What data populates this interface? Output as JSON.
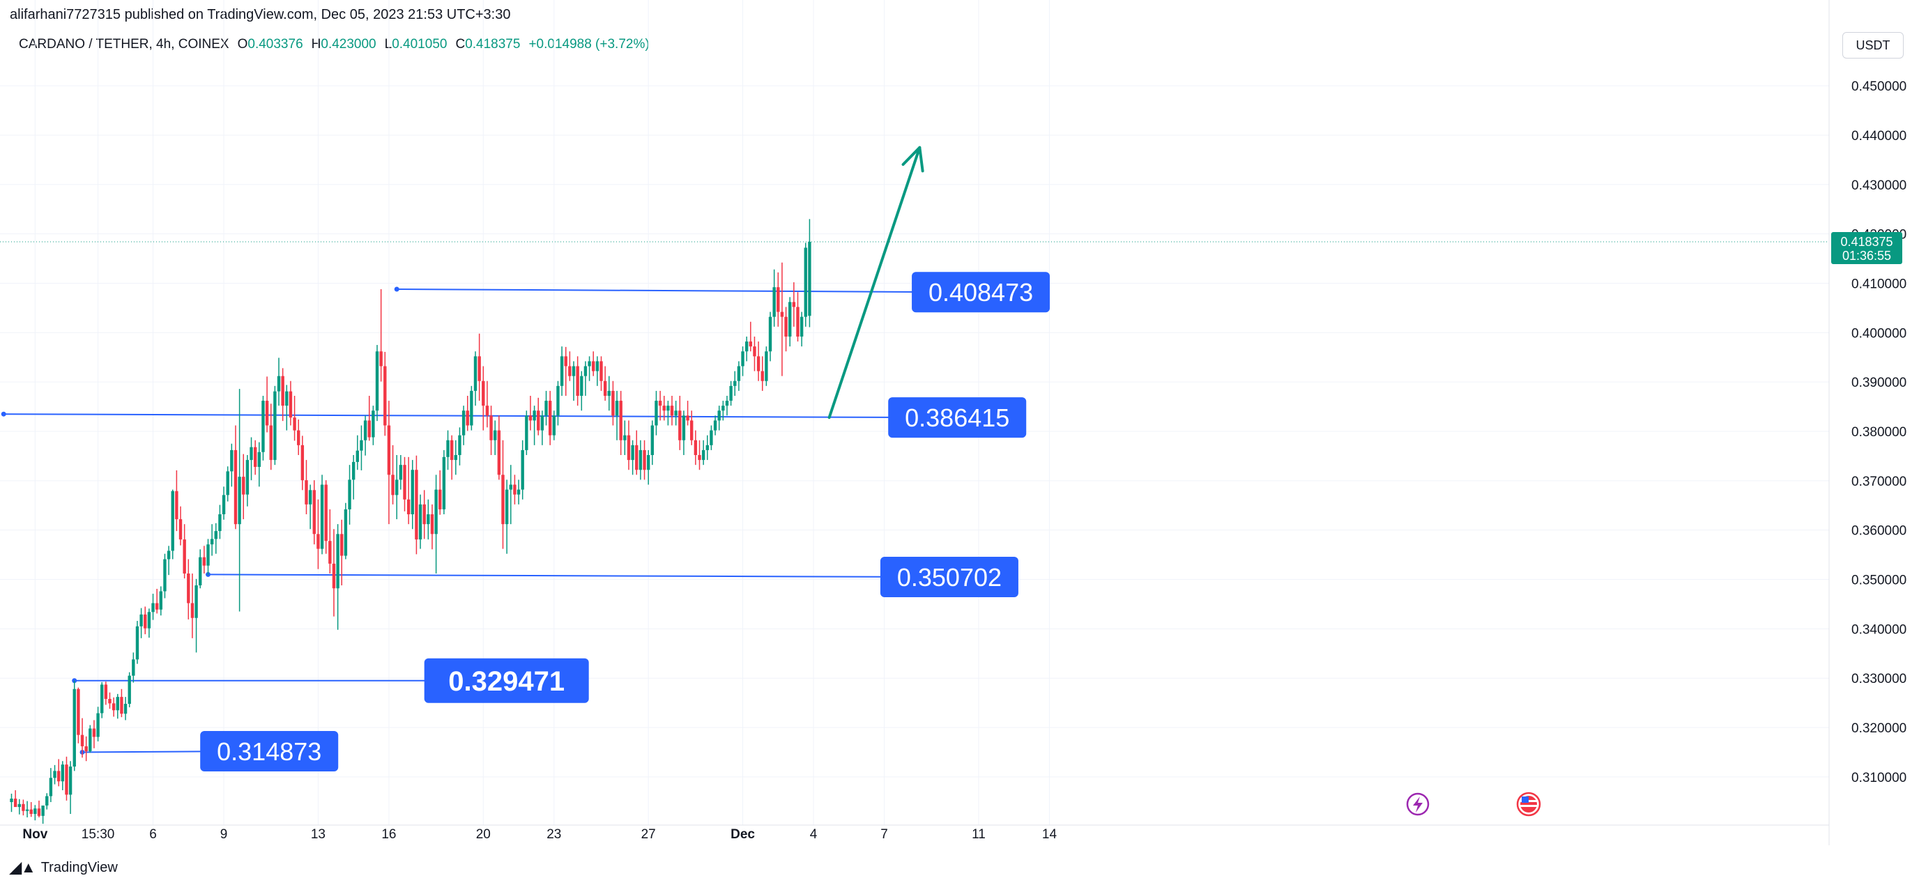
{
  "header": {
    "publisher": "alifarhani7727315 published on TradingView.com, Dec 05, 2023 21:53 UTC+3:30"
  },
  "legend": {
    "symbol": "CARDANO / TETHER, 4h, COINEX",
    "open_label": "O",
    "open": "0.403376",
    "high_label": "H",
    "high": "0.423000",
    "low_label": "L",
    "low": "0.401050",
    "close_label": "C",
    "close": "0.418375",
    "change": "+0.014988 (+3.72%)"
  },
  "currency_button": "USDT",
  "footer": {
    "brand": "TradingView"
  },
  "icons": {
    "logo": "tradingview-logo-icon",
    "event1": "lightning-event-icon",
    "event2": "us-flag-event-icon"
  },
  "colors": {
    "up": "#089981",
    "down": "#f23645",
    "level": "#2962ff",
    "arrow": "#089981"
  },
  "chart_data": {
    "type": "candlestick",
    "title": "CARDANO / TETHER, 4h, COINEX",
    "ylim": [
      0.3025,
      0.4575
    ],
    "y_ticks": [
      "0.450000",
      "0.440000",
      "0.430000",
      "0.420000",
      "0.410000",
      "0.400000",
      "0.390000",
      "0.380000",
      "0.370000",
      "0.360000",
      "0.350000",
      "0.340000",
      "0.330000",
      "0.320000",
      "0.310000"
    ],
    "x_ticks": [
      {
        "label": "Nov",
        "bar": 6,
        "bold": true
      },
      {
        "label": "15:30",
        "bar": 22,
        "bold": false
      },
      {
        "label": "6",
        "bar": 36,
        "bold": false
      },
      {
        "label": "9",
        "bar": 54,
        "bold": false
      },
      {
        "label": "13",
        "bar": 78,
        "bold": false
      },
      {
        "label": "16",
        "bar": 96,
        "bold": false
      },
      {
        "label": "20",
        "bar": 120,
        "bold": false
      },
      {
        "label": "23",
        "bar": 138,
        "bold": false
      },
      {
        "label": "27",
        "bar": 162,
        "bold": false
      },
      {
        "label": "Dec",
        "bar": 186,
        "bold": true
      },
      {
        "label": "4",
        "bar": 204,
        "bold": false
      },
      {
        "label": "7",
        "bar": 222,
        "bold": false
      },
      {
        "label": "11",
        "bar": 246,
        "bold": false
      },
      {
        "label": "14",
        "bar": 264,
        "bold": false
      }
    ],
    "price_label": {
      "value": "0.418375",
      "countdown": "01:36:55"
    },
    "levels": [
      {
        "value": 0.408473,
        "label": "0.408473",
        "start_bar": 98,
        "end_bar": 229,
        "start_price": 0.4088,
        "end_price": 0.4082
      },
      {
        "value": 0.386415,
        "label": "0.386415",
        "start_bar": -2,
        "end_bar": 223,
        "start_price": 0.3835,
        "end_price": 0.3828
      },
      {
        "value": 0.350702,
        "label": "0.350702",
        "start_bar": 50,
        "end_bar": 221,
        "start_price": 0.351,
        "end_price": 0.3505
      },
      {
        "value": 0.329471,
        "label": "0.329471",
        "start_bar": 16,
        "end_bar": 105,
        "start_price": 0.3295,
        "end_price": 0.3295
      },
      {
        "value": 0.314873,
        "label": "0.314873",
        "start_bar": 18,
        "end_bar": 48,
        "start_price": 0.315,
        "end_price": 0.3152
      }
    ],
    "arrow": {
      "from_bar": 208,
      "from_price": 0.3828,
      "to_bar": 231,
      "to_price": 0.4375
    },
    "candles": [
      [
        0.3049,
        0.3066,
        0.3029,
        0.3056
      ],
      [
        0.3056,
        0.3073,
        0.3041,
        0.3039
      ],
      [
        0.3039,
        0.3055,
        0.3024,
        0.3045
      ],
      [
        0.3045,
        0.3054,
        0.3022,
        0.3031
      ],
      [
        0.3031,
        0.3051,
        0.3018,
        0.3034
      ],
      [
        0.3034,
        0.3049,
        0.3019,
        0.3025
      ],
      [
        0.3025,
        0.3043,
        0.3012,
        0.3036
      ],
      [
        0.3036,
        0.3052,
        0.3018,
        0.3021
      ],
      [
        0.3021,
        0.3036,
        0.3005,
        0.3042
      ],
      [
        0.3042,
        0.3067,
        0.3034,
        0.3061
      ],
      [
        0.3061,
        0.3118,
        0.3049,
        0.3098
      ],
      [
        0.3098,
        0.3124,
        0.3085,
        0.3112
      ],
      [
        0.3112,
        0.3136,
        0.3081,
        0.3091
      ],
      [
        0.3091,
        0.3132,
        0.3073,
        0.3125
      ],
      [
        0.3125,
        0.3141,
        0.3052,
        0.3064
      ],
      [
        0.3064,
        0.3132,
        0.3025,
        0.3121
      ],
      [
        0.3121,
        0.3295,
        0.3112,
        0.3278
      ],
      [
        0.3278,
        0.3281,
        0.3168,
        0.3185
      ],
      [
        0.3185,
        0.3219,
        0.3139,
        0.3162
      ],
      [
        0.3162,
        0.3182,
        0.3132,
        0.3152
      ],
      [
        0.3152,
        0.3205,
        0.3149,
        0.3198
      ],
      [
        0.3198,
        0.3215,
        0.3158,
        0.3181
      ],
      [
        0.3181,
        0.3242,
        0.3172,
        0.3229
      ],
      [
        0.3229,
        0.3292,
        0.3219,
        0.3287
      ],
      [
        0.3287,
        0.3293,
        0.3246,
        0.3258
      ],
      [
        0.3258,
        0.3271,
        0.3238,
        0.3249
      ],
      [
        0.3249,
        0.3261,
        0.3222,
        0.3235
      ],
      [
        0.3235,
        0.3268,
        0.3218,
        0.3262
      ],
      [
        0.3262,
        0.3278,
        0.3221,
        0.3228
      ],
      [
        0.3228,
        0.3262,
        0.3215,
        0.3248
      ],
      [
        0.3248,
        0.3312,
        0.3241,
        0.3305
      ],
      [
        0.3305,
        0.3352,
        0.3291,
        0.3338
      ],
      [
        0.3338,
        0.3416,
        0.3329,
        0.3405
      ],
      [
        0.3405,
        0.3442,
        0.3381,
        0.3429
      ],
      [
        0.3429,
        0.3445,
        0.3389,
        0.3401
      ],
      [
        0.3401,
        0.3441,
        0.3382,
        0.3434
      ],
      [
        0.3434,
        0.3471,
        0.3418,
        0.3452
      ],
      [
        0.3452,
        0.3481,
        0.3431,
        0.3439
      ],
      [
        0.3439,
        0.3486,
        0.3427,
        0.3476
      ],
      [
        0.3476,
        0.3552,
        0.3462,
        0.3541
      ],
      [
        0.3541,
        0.3568,
        0.3509,
        0.3558
      ],
      [
        0.3558,
        0.3682,
        0.3541,
        0.3679
      ],
      [
        0.3679,
        0.3721,
        0.3598,
        0.3622
      ],
      [
        0.3622,
        0.3648,
        0.3569,
        0.3581
      ],
      [
        0.3581,
        0.3612,
        0.3502,
        0.3512
      ],
      [
        0.3512,
        0.3541,
        0.3419,
        0.3452
      ],
      [
        0.3452,
        0.3512,
        0.3381,
        0.3422
      ],
      [
        0.3422,
        0.3501,
        0.3352,
        0.3488
      ],
      [
        0.3488,
        0.3561,
        0.3482,
        0.3545
      ],
      [
        0.3545,
        0.3568,
        0.3512,
        0.3528
      ],
      [
        0.3528,
        0.3582,
        0.3509,
        0.3571
      ],
      [
        0.3571,
        0.3612,
        0.3548,
        0.3582
      ],
      [
        0.3582,
        0.3614,
        0.3552,
        0.3598
      ],
      [
        0.3598,
        0.3651,
        0.3582,
        0.3632
      ],
      [
        0.3632,
        0.3688,
        0.3621,
        0.3671
      ],
      [
        0.3671,
        0.3729,
        0.3658,
        0.3719
      ],
      [
        0.3719,
        0.3775,
        0.3688,
        0.3762
      ],
      [
        0.3762,
        0.3812,
        0.3602,
        0.3612
      ],
      [
        0.3612,
        0.3886,
        0.3435,
        0.3708
      ],
      [
        0.3708,
        0.3754,
        0.3622,
        0.3672
      ],
      [
        0.3672,
        0.3752,
        0.3648,
        0.3742
      ],
      [
        0.3742,
        0.3788,
        0.3701,
        0.3768
      ],
      [
        0.3768,
        0.3782,
        0.3712,
        0.3728
      ],
      [
        0.3728,
        0.3778,
        0.3688,
        0.3758
      ],
      [
        0.3758,
        0.3872,
        0.3741,
        0.3862
      ],
      [
        0.3862,
        0.3911,
        0.3798,
        0.3812
      ],
      [
        0.3812,
        0.3856,
        0.3722,
        0.3742
      ],
      [
        0.3742,
        0.3892,
        0.3732,
        0.3881
      ],
      [
        0.3881,
        0.3949,
        0.3852,
        0.3912
      ],
      [
        0.3912,
        0.3928,
        0.3821,
        0.3852
      ],
      [
        0.3852,
        0.3894,
        0.3802,
        0.3881
      ],
      [
        0.3881,
        0.3902,
        0.3812,
        0.3828
      ],
      [
        0.3828,
        0.3872,
        0.3781,
        0.3802
      ],
      [
        0.3802,
        0.3824,
        0.3752,
        0.3772
      ],
      [
        0.3772,
        0.3791,
        0.3681,
        0.3701
      ],
      [
        0.3701,
        0.3742,
        0.3632,
        0.3652
      ],
      [
        0.3652,
        0.3692,
        0.3602,
        0.3681
      ],
      [
        0.3681,
        0.3701,
        0.3571,
        0.3592
      ],
      [
        0.3592,
        0.3662,
        0.3521,
        0.3562
      ],
      [
        0.3562,
        0.3712,
        0.3551,
        0.3692
      ],
      [
        0.3692,
        0.3701,
        0.3552,
        0.3578
      ],
      [
        0.3578,
        0.3642,
        0.3512,
        0.3532
      ],
      [
        0.3532,
        0.3602,
        0.3425,
        0.3482
      ],
      [
        0.3482,
        0.3612,
        0.3398,
        0.3592
      ],
      [
        0.3592,
        0.3621,
        0.3488,
        0.3548
      ],
      [
        0.3548,
        0.3655,
        0.3541,
        0.3642
      ],
      [
        0.3642,
        0.3732,
        0.3611,
        0.3702
      ],
      [
        0.3702,
        0.3752,
        0.3662,
        0.3738
      ],
      [
        0.3738,
        0.3792,
        0.3722,
        0.3761
      ],
      [
        0.3761,
        0.3812,
        0.3721,
        0.3782
      ],
      [
        0.3782,
        0.3832,
        0.3751,
        0.3822
      ],
      [
        0.3822,
        0.3872,
        0.3781,
        0.3788
      ],
      [
        0.3788,
        0.3852,
        0.3772,
        0.3842
      ],
      [
        0.3842,
        0.3975,
        0.3821,
        0.3962
      ],
      [
        0.3962,
        0.4088,
        0.3901,
        0.3932
      ],
      [
        0.3932,
        0.3961,
        0.3791,
        0.3812
      ],
      [
        0.3812,
        0.3862,
        0.3612,
        0.3712
      ],
      [
        0.3712,
        0.3772,
        0.3652,
        0.3671
      ],
      [
        0.3671,
        0.3752,
        0.3622,
        0.3702
      ],
      [
        0.3702,
        0.3752,
        0.3682,
        0.3732
      ],
      [
        0.3732,
        0.3748,
        0.3638,
        0.3662
      ],
      [
        0.3662,
        0.3748,
        0.3612,
        0.3632
      ],
      [
        0.3632,
        0.3742,
        0.3602,
        0.3722
      ],
      [
        0.3722,
        0.3751,
        0.3551,
        0.3581
      ],
      [
        0.3581,
        0.3672,
        0.3562,
        0.3652
      ],
      [
        0.3652,
        0.3681,
        0.3582,
        0.3612
      ],
      [
        0.3612,
        0.3662,
        0.3581,
        0.3632
      ],
      [
        0.3632,
        0.3652,
        0.3561,
        0.3592
      ],
      [
        0.3592,
        0.3712,
        0.3512,
        0.3682
      ],
      [
        0.3682,
        0.3721,
        0.3631,
        0.3642
      ],
      [
        0.3642,
        0.3762,
        0.3632,
        0.3748
      ],
      [
        0.3748,
        0.3802,
        0.3722,
        0.3782
      ],
      [
        0.3782,
        0.3792,
        0.3702,
        0.3742
      ],
      [
        0.3742,
        0.3782,
        0.3712,
        0.3752
      ],
      [
        0.3752,
        0.3808,
        0.3731,
        0.3792
      ],
      [
        0.3792,
        0.3852,
        0.3772,
        0.3842
      ],
      [
        0.3842,
        0.3872,
        0.3801,
        0.3812
      ],
      [
        0.3812,
        0.3892,
        0.3802,
        0.3882
      ],
      [
        0.3882,
        0.3962,
        0.3852,
        0.3952
      ],
      [
        0.3952,
        0.3998,
        0.3862,
        0.3902
      ],
      [
        0.3902,
        0.3932,
        0.3802,
        0.3852
      ],
      [
        0.3852,
        0.3902,
        0.3808,
        0.3832
      ],
      [
        0.3832,
        0.3852,
        0.3752,
        0.3782
      ],
      [
        0.3782,
        0.3822,
        0.3752,
        0.3802
      ],
      [
        0.3802,
        0.3832,
        0.3702,
        0.3712
      ],
      [
        0.3712,
        0.3782,
        0.3562,
        0.3612
      ],
      [
        0.3612,
        0.3702,
        0.3552,
        0.3682
      ],
      [
        0.3682,
        0.3732,
        0.3612,
        0.3692
      ],
      [
        0.3692,
        0.3712,
        0.3652,
        0.3672
      ],
      [
        0.3672,
        0.3702,
        0.3652,
        0.3682
      ],
      [
        0.3682,
        0.3782,
        0.3662,
        0.3762
      ],
      [
        0.3762,
        0.3842,
        0.3752,
        0.3832
      ],
      [
        0.3832,
        0.3872,
        0.3802,
        0.3822
      ],
      [
        0.3822,
        0.3852,
        0.3772,
        0.3842
      ],
      [
        0.3842,
        0.3868,
        0.3792,
        0.3802
      ],
      [
        0.3802,
        0.3842,
        0.3772,
        0.3832
      ],
      [
        0.3832,
        0.3882,
        0.3812,
        0.3862
      ],
      [
        0.3862,
        0.3882,
        0.3772,
        0.3792
      ],
      [
        0.3792,
        0.3842,
        0.3782,
        0.3832
      ],
      [
        0.3832,
        0.3902,
        0.3812,
        0.3892
      ],
      [
        0.3892,
        0.3972,
        0.3872,
        0.3952
      ],
      [
        0.3952,
        0.3971,
        0.3872,
        0.3932
      ],
      [
        0.3932,
        0.3962,
        0.3902,
        0.3912
      ],
      [
        0.3912,
        0.3942,
        0.3862,
        0.3932
      ],
      [
        0.3932,
        0.3952,
        0.3852,
        0.3872
      ],
      [
        0.3872,
        0.3922,
        0.3842,
        0.3912
      ],
      [
        0.3912,
        0.3942,
        0.3872,
        0.3932
      ],
      [
        0.3932,
        0.3952,
        0.3902,
        0.3942
      ],
      [
        0.3942,
        0.3962,
        0.3912,
        0.3922
      ],
      [
        0.3922,
        0.3952,
        0.3892,
        0.3942
      ],
      [
        0.3942,
        0.3952,
        0.3882,
        0.3902
      ],
      [
        0.3902,
        0.3932,
        0.3862,
        0.3872
      ],
      [
        0.3872,
        0.3912,
        0.3842,
        0.3882
      ],
      [
        0.3882,
        0.3902,
        0.3812,
        0.3832
      ],
      [
        0.3832,
        0.3882,
        0.3782,
        0.3862
      ],
      [
        0.3862,
        0.3882,
        0.3752,
        0.3782
      ],
      [
        0.3782,
        0.3822,
        0.3752,
        0.3792
      ],
      [
        0.3792,
        0.3822,
        0.3722,
        0.3742
      ],
      [
        0.3742,
        0.3782,
        0.3712,
        0.3772
      ],
      [
        0.3772,
        0.3802,
        0.3712,
        0.3722
      ],
      [
        0.3722,
        0.3782,
        0.3702,
        0.3762
      ],
      [
        0.3762,
        0.3782,
        0.3702,
        0.3722
      ],
      [
        0.3722,
        0.3762,
        0.3692,
        0.3752
      ],
      [
        0.3752,
        0.3822,
        0.3732,
        0.3812
      ],
      [
        0.3812,
        0.3882,
        0.3792,
        0.3862
      ],
      [
        0.3862,
        0.3882,
        0.3822,
        0.3852
      ],
      [
        0.3852,
        0.3872,
        0.3822,
        0.3842
      ],
      [
        0.3842,
        0.3862,
        0.3812,
        0.3852
      ],
      [
        0.3852,
        0.3872,
        0.3812,
        0.3832
      ],
      [
        0.3832,
        0.3862,
        0.3812,
        0.3842
      ],
      [
        0.3842,
        0.3872,
        0.3762,
        0.3782
      ],
      [
        0.3782,
        0.3842,
        0.3752,
        0.3832
      ],
      [
        0.3832,
        0.3862,
        0.3812,
        0.3822
      ],
      [
        0.3822,
        0.3842,
        0.3772,
        0.3782
      ],
      [
        0.3782,
        0.3802,
        0.3732,
        0.3752
      ],
      [
        0.3752,
        0.3782,
        0.3722,
        0.3742
      ],
      [
        0.3742,
        0.3782,
        0.3732,
        0.3762
      ],
      [
        0.3762,
        0.3792,
        0.3742,
        0.3772
      ],
      [
        0.3772,
        0.3812,
        0.3762,
        0.3802
      ],
      [
        0.3802,
        0.3832,
        0.3792,
        0.3822
      ],
      [
        0.3822,
        0.3852,
        0.3802,
        0.3842
      ],
      [
        0.3842,
        0.3862,
        0.3822,
        0.3852
      ],
      [
        0.3852,
        0.3872,
        0.3832,
        0.3862
      ],
      [
        0.3862,
        0.3902,
        0.3852,
        0.3892
      ],
      [
        0.3892,
        0.3922,
        0.3872,
        0.3902
      ],
      [
        0.3902,
        0.3942,
        0.3882,
        0.3932
      ],
      [
        0.3932,
        0.3972,
        0.3912,
        0.3962
      ],
      [
        0.3962,
        0.3992,
        0.3942,
        0.3982
      ],
      [
        0.3982,
        0.4022,
        0.3962,
        0.3972
      ],
      [
        0.3972,
        0.3992,
        0.3922,
        0.3952
      ],
      [
        0.3952,
        0.3982,
        0.3902,
        0.3922
      ],
      [
        0.3922,
        0.3952,
        0.3882,
        0.3902
      ],
      [
        0.3902,
        0.3972,
        0.3892,
        0.3962
      ],
      [
        0.3962,
        0.4042,
        0.3942,
        0.4032
      ],
      [
        0.4032,
        0.4128,
        0.4012,
        0.4092
      ],
      [
        0.4092,
        0.4122,
        0.4012,
        0.4042
      ],
      [
        0.4042,
        0.4142,
        0.3912,
        0.4032
      ],
      [
        0.4032,
        0.4052,
        0.3962,
        0.3992
      ],
      [
        0.3992,
        0.4072,
        0.3972,
        0.4062
      ],
      [
        0.4062,
        0.4102,
        0.4012,
        0.4052
      ],
      [
        0.4052,
        0.4082,
        0.3982,
        0.3992
      ],
      [
        0.3992,
        0.4042,
        0.3972,
        0.4032
      ],
      [
        0.4032,
        0.4182,
        0.4012,
        0.4172
      ],
      [
        0.4034,
        0.423,
        0.4011,
        0.4184
      ]
    ]
  }
}
